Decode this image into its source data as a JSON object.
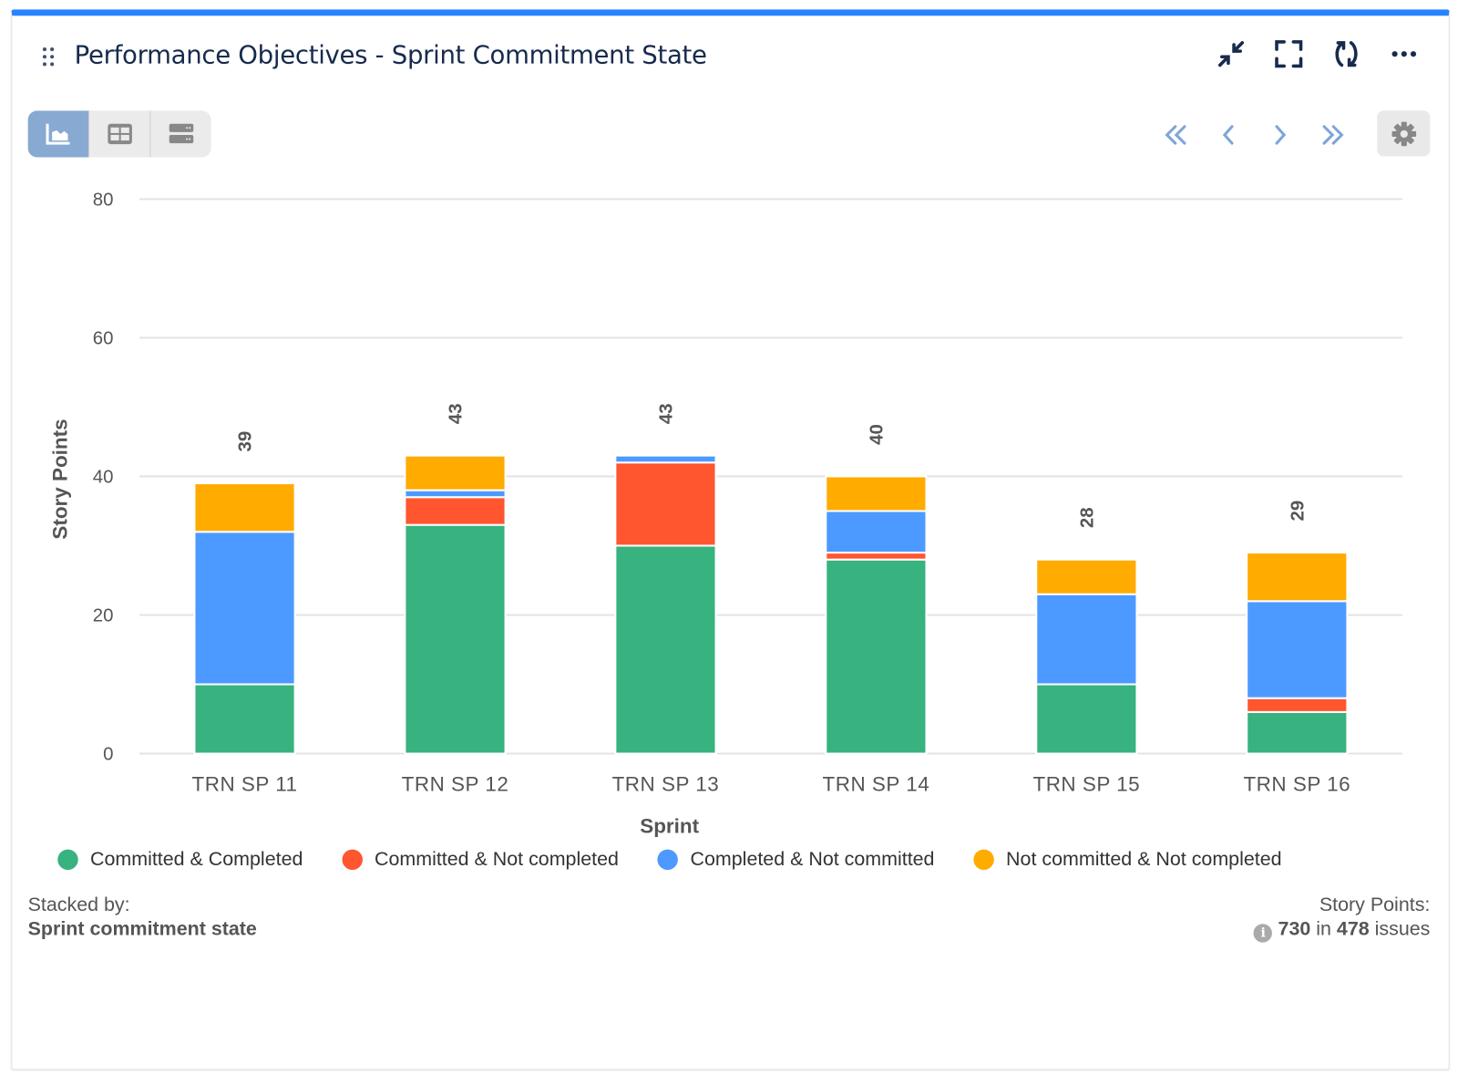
{
  "header": {
    "title": "Performance Objectives - Sprint Commitment State"
  },
  "icons": {
    "drag": "drag-handle-icon",
    "collapse": "collapse-icon",
    "fullscreen": "fullscreen-icon",
    "refresh": "refresh-icon",
    "more": "more-icon",
    "settings": "gear-icon"
  },
  "views": [
    {
      "name": "chart",
      "active": true
    },
    {
      "name": "table",
      "active": false
    },
    {
      "name": "list",
      "active": false
    }
  ],
  "colors": {
    "Committed & Completed": "#38b27f",
    "Committed & Not completed": "#ff5630",
    "Completed & Not committed": "#4c9aff",
    "Not committed & Not completed": "#ffab00",
    "header_bar": "#2684ff"
  },
  "chart_data": {
    "type": "bar",
    "stacked": true,
    "categories": [
      "TRN SP 11",
      "TRN SP 12",
      "TRN SP 13",
      "TRN SP 14",
      "TRN SP 15",
      "TRN SP 16"
    ],
    "series": [
      {
        "name": "Committed & Completed",
        "values": [
          10,
          33,
          30,
          28,
          10,
          6
        ]
      },
      {
        "name": "Committed & Not completed",
        "values": [
          0,
          4,
          12,
          1,
          0,
          2
        ]
      },
      {
        "name": "Completed & Not committed",
        "values": [
          22,
          1,
          1,
          6,
          13,
          14
        ]
      },
      {
        "name": "Not committed & Not completed",
        "values": [
          7,
          5,
          0,
          5,
          5,
          7
        ]
      }
    ],
    "totals": [
      "39",
      "43",
      "43",
      "40",
      "28",
      "29"
    ],
    "xlabel": "Sprint",
    "ylabel": "Story Points",
    "ylim": [
      0,
      80
    ],
    "yticks": [
      "0",
      "20",
      "40",
      "60",
      "80"
    ],
    "grid": true,
    "legend": "bottom"
  },
  "footer": {
    "stacked_label": "Stacked by:",
    "stacked_value": "Sprint commitment state",
    "summary_label": "Story Points:",
    "points": "730",
    "in": "in",
    "issues": "478",
    "issues_label": "issues"
  }
}
